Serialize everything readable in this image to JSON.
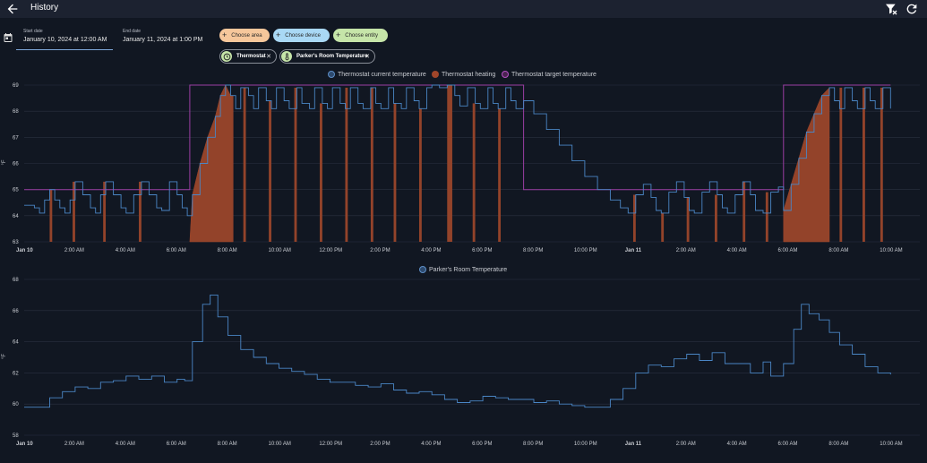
{
  "header": {
    "title": "History"
  },
  "date_range": {
    "start_label": "Start date",
    "start_value": "January 10, 2024 at 12:00 AM",
    "end_label": "End date",
    "end_value": "January 11, 2024 at 1:00 PM"
  },
  "pickers": {
    "area": "Choose area",
    "device": "Choose device",
    "entity": "Choose entity"
  },
  "selected": [
    {
      "label": "Thermostat"
    },
    {
      "label": "Parker's Room Temperature"
    }
  ],
  "chart_data": [
    {
      "type": "line",
      "series": [
        {
          "name": "Thermostat current temperature",
          "color": "#3e7ab8"
        },
        {
          "name": "Thermostat heating",
          "color": "#a0462a"
        },
        {
          "name": "Thermostat target temperature",
          "color": "#9b3fa4"
        }
      ],
      "ylabel": "°F",
      "ylim": [
        63,
        69
      ],
      "yticks": [
        "63",
        "64",
        "65",
        "66",
        "67",
        "68",
        "69"
      ],
      "xticks": [
        "Jan 10",
        "2:00 AM",
        "4:00 AM",
        "6:00 AM",
        "8:00 AM",
        "10:00 AM",
        "12:00 PM",
        "2:00 PM",
        "4:00 PM",
        "6:00 PM",
        "8:00 PM",
        "10:00 PM",
        "Jan 11",
        "2:00 AM",
        "4:00 AM",
        "6:00 AM",
        "8:00 AM",
        "10:00 AM"
      ],
      "target_steps": [
        {
          "from_h": 0,
          "to_h": 6.5,
          "value": 65
        },
        {
          "from_h": 6.5,
          "to_h": 19.6,
          "value": 69
        },
        {
          "from_h": 19.6,
          "to_h": 29.8,
          "value": 65
        },
        {
          "from_h": 29.8,
          "to_h": 34.0,
          "value": 69
        }
      ],
      "current_points": [
        [
          0.0,
          64.4
        ],
        [
          0.4,
          64.3
        ],
        [
          0.6,
          64.1
        ],
        [
          0.8,
          64.6
        ],
        [
          1.0,
          65.0
        ],
        [
          1.2,
          64.6
        ],
        [
          1.4,
          64.3
        ],
        [
          1.6,
          64.1
        ],
        [
          1.8,
          64.6
        ],
        [
          2.0,
          65.3
        ],
        [
          2.3,
          64.8
        ],
        [
          2.6,
          64.3
        ],
        [
          2.8,
          64.1
        ],
        [
          3.0,
          64.8
        ],
        [
          3.2,
          65.3
        ],
        [
          3.5,
          64.8
        ],
        [
          3.8,
          64.3
        ],
        [
          4.0,
          64.1
        ],
        [
          4.3,
          64.8
        ],
        [
          4.6,
          65.3
        ],
        [
          4.9,
          64.8
        ],
        [
          5.2,
          64.3
        ],
        [
          5.4,
          64.2
        ],
        [
          5.7,
          65.3
        ],
        [
          6.0,
          64.8
        ],
        [
          6.2,
          64.3
        ],
        [
          6.4,
          64.0
        ],
        [
          6.6,
          64.8
        ],
        [
          6.9,
          66.0
        ],
        [
          7.2,
          67.0
        ],
        [
          7.5,
          67.8
        ],
        [
          7.7,
          68.6
        ],
        [
          7.9,
          69.0
        ],
        [
          8.1,
          68.6
        ],
        [
          8.3,
          68.1
        ],
        [
          8.5,
          68.9
        ],
        [
          8.8,
          68.6
        ],
        [
          9.0,
          68.1
        ],
        [
          9.2,
          68.9
        ],
        [
          9.5,
          68.4
        ],
        [
          9.7,
          68.1
        ],
        [
          9.9,
          68.9
        ],
        [
          10.2,
          68.4
        ],
        [
          10.4,
          68.1
        ],
        [
          10.7,
          68.9
        ],
        [
          10.9,
          68.3
        ],
        [
          11.2,
          68.1
        ],
        [
          11.4,
          68.9
        ],
        [
          11.7,
          68.3
        ],
        [
          11.9,
          68.1
        ],
        [
          12.1,
          68.9
        ],
        [
          12.4,
          68.3
        ],
        [
          12.6,
          68.1
        ],
        [
          12.8,
          68.9
        ],
        [
          13.1,
          68.3
        ],
        [
          13.3,
          68.1
        ],
        [
          13.6,
          68.9
        ],
        [
          13.8,
          68.3
        ],
        [
          14.0,
          68.1
        ],
        [
          14.3,
          68.9
        ],
        [
          14.5,
          68.3
        ],
        [
          14.8,
          68.1
        ],
        [
          15.0,
          68.9
        ],
        [
          15.3,
          68.4
        ],
        [
          15.5,
          68.1
        ],
        [
          15.8,
          68.9
        ],
        [
          16.0,
          69.0
        ],
        [
          16.3,
          68.9
        ],
        [
          16.6,
          69.0
        ],
        [
          16.9,
          68.6
        ],
        [
          17.1,
          68.2
        ],
        [
          17.4,
          68.9
        ],
        [
          17.7,
          68.3
        ],
        [
          17.9,
          68.1
        ],
        [
          18.2,
          68.9
        ],
        [
          18.4,
          68.3
        ],
        [
          18.6,
          68.1
        ],
        [
          18.9,
          68.9
        ],
        [
          19.1,
          68.4
        ],
        [
          19.3,
          68.1
        ],
        [
          19.6,
          68.4
        ],
        [
          20.0,
          67.9
        ],
        [
          20.5,
          67.3
        ],
        [
          21.0,
          66.7
        ],
        [
          21.5,
          66.1
        ],
        [
          22.0,
          65.5
        ],
        [
          22.5,
          65.0
        ],
        [
          23.0,
          64.6
        ],
        [
          23.4,
          64.3
        ],
        [
          23.7,
          64.1
        ],
        [
          24.0,
          64.8
        ],
        [
          24.3,
          65.2
        ],
        [
          24.6,
          64.7
        ],
        [
          24.8,
          64.2
        ],
        [
          25.0,
          64.1
        ],
        [
          25.3,
          64.9
        ],
        [
          25.6,
          65.3
        ],
        [
          25.9,
          64.7
        ],
        [
          26.1,
          64.2
        ],
        [
          26.3,
          64.1
        ],
        [
          26.6,
          64.9
        ],
        [
          26.9,
          65.3
        ],
        [
          27.2,
          64.8
        ],
        [
          27.4,
          64.3
        ],
        [
          27.6,
          64.1
        ],
        [
          27.9,
          64.8
        ],
        [
          28.2,
          65.3
        ],
        [
          28.5,
          64.8
        ],
        [
          28.7,
          64.2
        ],
        [
          29.0,
          64.1
        ],
        [
          29.3,
          64.9
        ],
        [
          29.6,
          65.1
        ],
        [
          29.8,
          64.2
        ],
        [
          30.1,
          65.2
        ],
        [
          30.4,
          66.2
        ],
        [
          30.7,
          67.2
        ],
        [
          31.0,
          67.9
        ],
        [
          31.3,
          68.6
        ],
        [
          31.6,
          68.9
        ],
        [
          31.8,
          68.4
        ],
        [
          32.0,
          68.1
        ],
        [
          32.2,
          68.9
        ],
        [
          32.5,
          68.4
        ],
        [
          32.7,
          68.1
        ],
        [
          33.0,
          68.9
        ],
        [
          33.2,
          68.4
        ],
        [
          33.4,
          68.1
        ],
        [
          33.7,
          68.9
        ],
        [
          34.0,
          68.1
        ]
      ],
      "heating_bars_h": [
        [
          1.0,
          1.1
        ],
        [
          1.9,
          2.0
        ],
        [
          3.1,
          3.2
        ],
        [
          4.5,
          4.6
        ],
        [
          6.5,
          8.2
        ],
        [
          8.6,
          8.7
        ],
        [
          9.6,
          9.7
        ],
        [
          10.6,
          10.7
        ],
        [
          11.6,
          11.7
        ],
        [
          12.6,
          12.7
        ],
        [
          13.6,
          13.7
        ],
        [
          14.5,
          14.6
        ],
        [
          15.5,
          15.6
        ],
        [
          16.6,
          16.8
        ],
        [
          17.6,
          17.7
        ],
        [
          18.6,
          18.7
        ],
        [
          23.9,
          24.0
        ],
        [
          25.0,
          25.1
        ],
        [
          26.0,
          26.1
        ],
        [
          27.1,
          27.2
        ],
        [
          28.2,
          28.3
        ],
        [
          29.1,
          29.2
        ],
        [
          29.8,
          31.6
        ],
        [
          32.0,
          32.1
        ],
        [
          32.9,
          33.0
        ],
        [
          33.6,
          33.7
        ]
      ]
    },
    {
      "type": "line",
      "series": [
        {
          "name": "Parker's Room Temperature",
          "color": "#3e7ab8"
        }
      ],
      "ylabel": "°F",
      "ylim": [
        58,
        68
      ],
      "yticks": [
        "58",
        "60",
        "62",
        "64",
        "66",
        "68"
      ],
      "xticks": [
        "Jan 10",
        "2:00 AM",
        "4:00 AM",
        "6:00 AM",
        "8:00 AM",
        "10:00 AM",
        "12:00 PM",
        "2:00 PM",
        "4:00 PM",
        "6:00 PM",
        "8:00 PM",
        "10:00 PM",
        "Jan 11",
        "2:00 AM",
        "4:00 AM",
        "6:00 AM",
        "8:00 AM",
        "10:00 AM"
      ],
      "points": [
        [
          0.0,
          59.8
        ],
        [
          0.5,
          59.8
        ],
        [
          1.0,
          60.4
        ],
        [
          1.5,
          60.8
        ],
        [
          2.0,
          61.1
        ],
        [
          2.5,
          61.0
        ],
        [
          3.0,
          61.4
        ],
        [
          3.5,
          61.5
        ],
        [
          4.0,
          61.8
        ],
        [
          4.5,
          61.6
        ],
        [
          5.0,
          61.8
        ],
        [
          5.5,
          61.4
        ],
        [
          6.0,
          61.6
        ],
        [
          6.3,
          61.5
        ],
        [
          6.6,
          64.0
        ],
        [
          7.0,
          66.4
        ],
        [
          7.3,
          67.0
        ],
        [
          7.6,
          65.6
        ],
        [
          8.0,
          64.4
        ],
        [
          8.5,
          63.5
        ],
        [
          9.0,
          63.0
        ],
        [
          9.5,
          62.6
        ],
        [
          10.0,
          62.3
        ],
        [
          10.5,
          62.1
        ],
        [
          11.0,
          61.9
        ],
        [
          11.5,
          61.6
        ],
        [
          12.0,
          61.4
        ],
        [
          12.5,
          61.4
        ],
        [
          13.0,
          61.2
        ],
        [
          13.5,
          61.1
        ],
        [
          14.0,
          61.3
        ],
        [
          14.5,
          60.9
        ],
        [
          15.0,
          60.7
        ],
        [
          15.5,
          60.8
        ],
        [
          16.0,
          60.6
        ],
        [
          16.5,
          60.3
        ],
        [
          17.0,
          60.1
        ],
        [
          17.5,
          60.2
        ],
        [
          18.0,
          60.5
        ],
        [
          18.5,
          60.4
        ],
        [
          19.0,
          60.3
        ],
        [
          19.5,
          60.3
        ],
        [
          20.0,
          60.1
        ],
        [
          20.5,
          60.2
        ],
        [
          21.0,
          60.0
        ],
        [
          21.5,
          59.9
        ],
        [
          22.0,
          59.8
        ],
        [
          22.5,
          59.8
        ],
        [
          23.0,
          60.3
        ],
        [
          23.5,
          61.0
        ],
        [
          24.0,
          62.0
        ],
        [
          24.5,
          62.5
        ],
        [
          25.0,
          62.4
        ],
        [
          25.5,
          62.9
        ],
        [
          26.0,
          63.2
        ],
        [
          26.5,
          62.8
        ],
        [
          27.0,
          63.3
        ],
        [
          27.5,
          62.6
        ],
        [
          28.0,
          62.6
        ],
        [
          28.5,
          62.0
        ],
        [
          29.0,
          62.7
        ],
        [
          29.3,
          61.8
        ],
        [
          29.8,
          62.6
        ],
        [
          30.2,
          64.8
        ],
        [
          30.5,
          66.4
        ],
        [
          30.8,
          65.8
        ],
        [
          31.2,
          65.4
        ],
        [
          31.6,
          64.6
        ],
        [
          32.0,
          63.8
        ],
        [
          32.5,
          63.2
        ],
        [
          33.0,
          62.4
        ],
        [
          33.5,
          62.0
        ],
        [
          34.0,
          61.9
        ]
      ]
    }
  ]
}
